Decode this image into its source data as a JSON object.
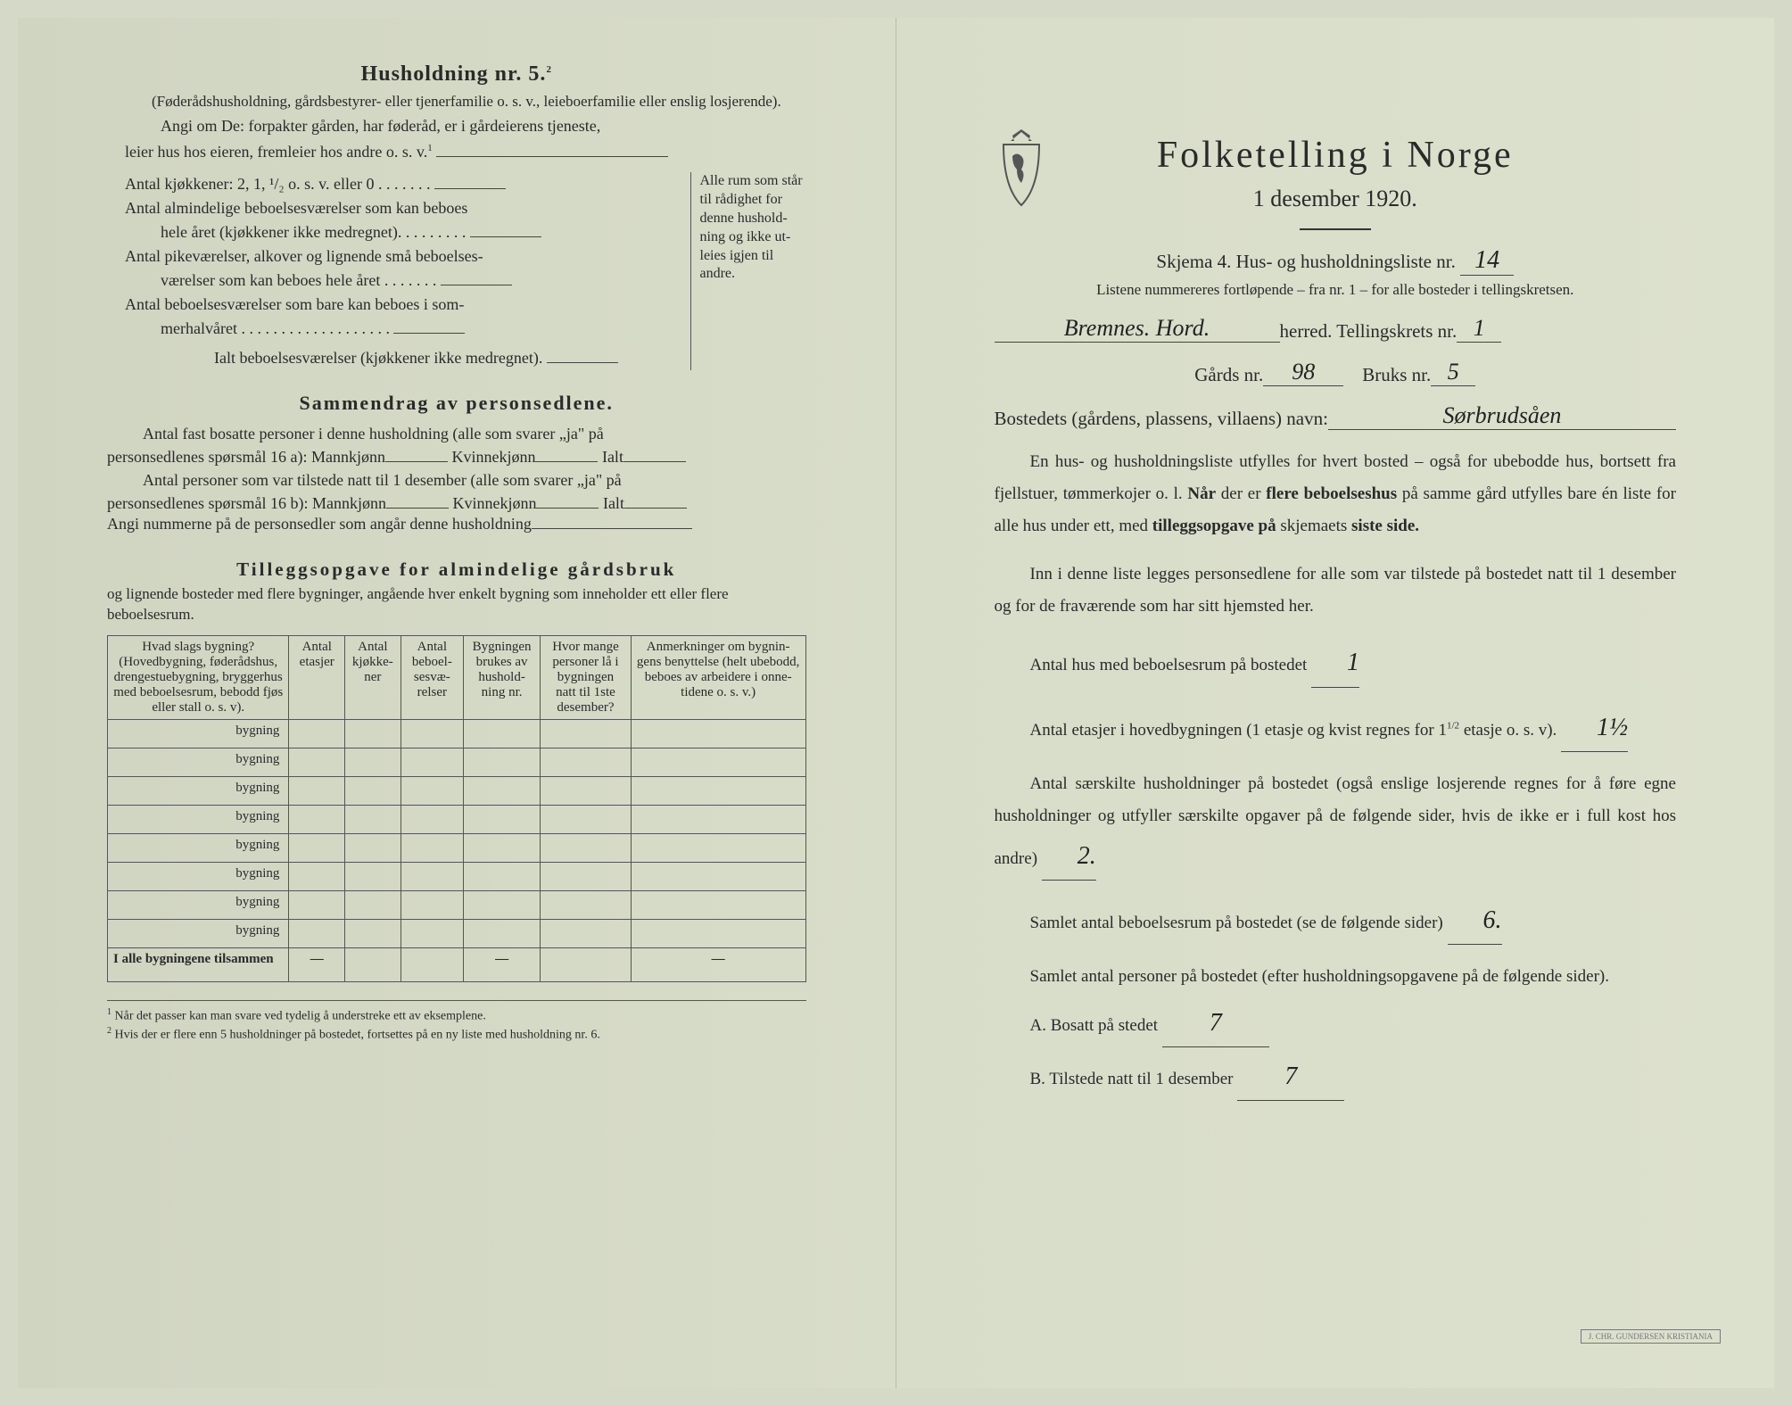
{
  "left": {
    "h5_title": "Husholdning nr. 5.",
    "h5_sup": "2",
    "h5_paren": "(Føderådshusholdning, gårdsbestyrer- eller tjenerfamilie o. s. v., leieboerfamilie eller enslig losjerende).",
    "angi_line1": "Angi om De:  forpakter gården, har føderåd, er i gårdeierens tjeneste,",
    "angi_line2": "leier hus hos eieren, fremleier hos andre o. s. v.",
    "angi_sup": "1",
    "rooms": {
      "r1": "Antal kjøkkener: 2, 1, ¹/₂ o. s. v. eller 0 . . . . . . .",
      "r2a": "Antal almindelige beboelsesværelser som kan beboes",
      "r2b": "hele året (kjøkkener ikke medregnet). . . . . . . . .",
      "r3a": "Antal pikeværelser, alkover og lignende små beboelses-",
      "r3b": "værelser som kan beboes hele året . . . . . . .",
      "r4a": "Antal beboelsesværelser som bare kan beboes i som-",
      "r4b": "merhalvåret . . . . . . . . . . . . . . . . . . .",
      "r5": "Ialt beboelsesværelser  (kjøkkener ikke medregnet).",
      "side": "Alle rum som står til rådighet for denne hushold-ning og ikke ut-leies igjen til andre."
    },
    "samm_title": "Sammendrag av personsedlene.",
    "samm_l1": "Antal fast bosatte personer i denne husholdning (alle som svarer „ja\" på",
    "samm_l2a": "personsedlenes spørsmål 16 a): Mannkjønn",
    "samm_l2b": "Kvinnekjønn",
    "samm_l2c": "Ialt",
    "samm_l3": "Antal personer som var tilstede natt til 1 desember (alle som svarer „ja\" på",
    "samm_l4a": "personsedlenes spørsmål 16 b): Mannkjønn",
    "samm_l4b": "Kvinnekjønn",
    "samm_l4c": "Ialt",
    "samm_l5": "Angi nummerne på de personsedler som angår denne husholdning",
    "tillegg_title": "Tilleggsopgave for almindelige gårdsbruk",
    "tillegg_desc": "og lignende bosteder med flere bygninger, angående hver enkelt bygning som inneholder ett eller flere beboelsesrum.",
    "table": {
      "headers": [
        "Hvad slags bygning?\n(Hovedbygning, føderådshus, drengestuebygning, bryggerhus med beboelsesrum, bebodd fjøs eller stall o. s. v).",
        "Antal etasjer",
        "Antal kjøkke-ner",
        "Antal beboel-sesvæ-relser",
        "Bygningen brukes av hushold-ning nr.",
        "Hvor mange personer lå i bygningen natt til 1ste desember?",
        "Anmerkninger om bygnin-gens benyttelse (helt ubebodd, beboes av arbeidere i onne-tidene o. s. v.)"
      ],
      "row_label": "bygning",
      "row_count": 8,
      "total_label": "I alle bygningene tilsammen"
    },
    "footnote1": "Når det passer kan man svare ved tydelig å understreke ett av eksemplene.",
    "footnote2": "Hvis der er flere enn 5 husholdninger på bostedet, fortsettes på en ny liste med husholdning nr. 6."
  },
  "right": {
    "main_title": "Folketelling i Norge",
    "subtitle": "1 desember 1920.",
    "skjema": "Skjema 4.  Hus- og husholdningsliste nr.",
    "skjema_val": "14",
    "note": "Listene nummereres fortløpende – fra nr. 1 – for alle bosteder i tellingskretsen.",
    "herred_val": "Bremnes. Hord.",
    "herred_label": "herred.   Tellingskrets nr.",
    "krets_val": "1",
    "gard_label": "Gårds nr.",
    "gard_val": "98",
    "bruks_label": "Bruks nr.",
    "bruks_val": "5",
    "bosted_label": "Bostedets (gårdens, plassens, villaens) navn:",
    "bosted_val": "Sørbrudsåen",
    "para1": "En hus- og husholdningsliste utfylles for hvert bosted – også for ubebodde hus, bortsett fra fjellstuer, tømmerkojer o. l.  Når der er flere beboelseshus på samme gård utfylles bare én liste for alle hus under ett, med tilleggsopgave på skjemaets siste side.",
    "para2": "Inn i denne liste legges personsedlene for alle som var tilstede på bostedet natt til 1 desember og for de fraværende som har sitt hjemsted her.",
    "q1": "Antal hus med beboelsesrum på bostedet",
    "q1_val": "1",
    "q2a": "Antal etasjer i hovedbygningen (1 etasje og kvist regnes for 1",
    "q2a_sup": "1/2",
    "q2b": "etasje o. s. v).",
    "q2_val": "1½",
    "q3a": "Antal særskilte husholdninger på bostedet (også enslige losjerende regnes for å føre egne husholdninger og utfyller særskilte opgaver på de følgende sider, hvis de ikke er i full kost hos andre)",
    "q3_val": "2.",
    "q4": "Samlet antal beboelsesrum på bostedet (se de følgende sider)",
    "q4_val": "6.",
    "q5": "Samlet antal personer på bostedet (efter husholdningsopgavene på de følgende sider).",
    "qA": "A.  Bosatt på stedet",
    "qA_val": "7",
    "qB": "B.  Tilstede natt til 1 desember",
    "qB_val": "7",
    "stamp": "J. CHR. GUNDERSEN  KRISTIANIA"
  },
  "colors": {
    "paper": "#d4d9c8",
    "ink": "#2a2a2a",
    "line": "#444444"
  }
}
